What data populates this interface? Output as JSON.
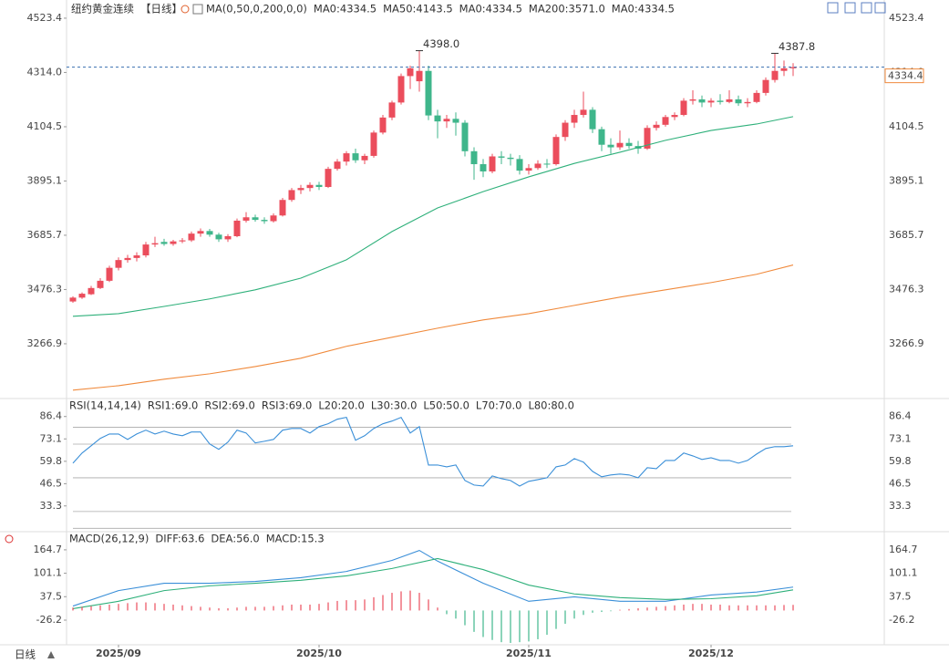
{
  "chart_data": [
    {
      "type": "candlestick",
      "title": "纽约黄金连续",
      "period": "【日线】",
      "indicator": "MA(0,50,0,200,0,0)",
      "period_button": "日线",
      "up_color": "#eb4d5c",
      "down_color": "#3fb68b",
      "ohlc": [
        [
          3430,
          3450,
          3425,
          3445
        ],
        [
          3445,
          3465,
          3440,
          3460
        ],
        [
          3458,
          3490,
          3455,
          3482
        ],
        [
          3482,
          3520,
          3478,
          3510
        ],
        [
          3510,
          3568,
          3505,
          3560
        ],
        [
          3560,
          3600,
          3550,
          3590
        ],
        [
          3590,
          3610,
          3580,
          3598
        ],
        [
          3598,
          3620,
          3585,
          3608
        ],
        [
          3608,
          3660,
          3600,
          3650
        ],
        [
          3650,
          3680,
          3640,
          3655
        ],
        [
          3660,
          3672,
          3645,
          3652
        ],
        [
          3652,
          3668,
          3645,
          3662
        ],
        [
          3662,
          3675,
          3655,
          3666
        ],
        [
          3666,
          3700,
          3660,
          3692
        ],
        [
          3692,
          3712,
          3680,
          3702
        ],
        [
          3702,
          3710,
          3680,
          3688
        ],
        [
          3688,
          3695,
          3660,
          3670
        ],
        [
          3670,
          3690,
          3660,
          3682
        ],
        [
          3682,
          3750,
          3678,
          3742
        ],
        [
          3742,
          3775,
          3735,
          3755
        ],
        [
          3755,
          3765,
          3738,
          3745
        ],
        [
          3745,
          3755,
          3730,
          3740
        ],
        [
          3740,
          3770,
          3735,
          3762
        ],
        [
          3762,
          3830,
          3758,
          3822
        ],
        [
          3822,
          3868,
          3815,
          3860
        ],
        [
          3860,
          3880,
          3845,
          3868
        ],
        [
          3868,
          3890,
          3855,
          3880
        ],
        [
          3880,
          3892,
          3860,
          3872
        ],
        [
          3872,
          3950,
          3868,
          3942
        ],
        [
          3942,
          3980,
          3935,
          3970
        ],
        [
          3970,
          4010,
          3955,
          4002
        ],
        [
          4002,
          4020,
          3965,
          3975
        ],
        [
          3975,
          4000,
          3960,
          3992
        ],
        [
          3992,
          4090,
          3985,
          4082
        ],
        [
          4082,
          4150,
          4075,
          4140
        ],
        [
          4140,
          4205,
          4130,
          4198
        ],
        [
          4198,
          4310,
          4190,
          4300
        ],
        [
          4300,
          4340,
          4250,
          4330
        ],
        [
          4280,
          4398,
          4240,
          4320
        ],
        [
          4320,
          4340,
          4130,
          4148
        ],
        [
          4148,
          4170,
          4060,
          4125
        ],
        [
          4125,
          4150,
          4100,
          4135
        ],
        [
          4135,
          4160,
          4070,
          4120
        ],
        [
          4120,
          4130,
          3990,
          4010
        ],
        [
          4010,
          4025,
          3900,
          3960
        ],
        [
          3960,
          3980,
          3910,
          3932
        ],
        [
          3932,
          4000,
          3925,
          3990
        ],
        [
          3990,
          4010,
          3960,
          3985
        ],
        [
          3985,
          4000,
          3955,
          3980
        ],
        [
          3980,
          3995,
          3920,
          3935
        ],
        [
          3935,
          3960,
          3920,
          3945
        ],
        [
          3945,
          3975,
          3938,
          3962
        ],
        [
          3962,
          3980,
          3945,
          3960
        ],
        [
          3960,
          4075,
          3955,
          4065
        ],
        [
          4065,
          4130,
          4050,
          4120
        ],
        [
          4120,
          4170,
          4100,
          4150
        ],
        [
          4150,
          4240,
          4140,
          4170
        ],
        [
          4170,
          4180,
          4080,
          4095
        ],
        [
          4095,
          4105,
          4010,
          4035
        ],
        [
          4035,
          4060,
          4000,
          4025
        ],
        [
          4025,
          4090,
          4015,
          4042
        ],
        [
          4042,
          4060,
          4020,
          4030
        ],
        [
          4030,
          4050,
          4000,
          4020
        ],
        [
          4020,
          4110,
          4015,
          4100
        ],
        [
          4100,
          4125,
          4090,
          4112
        ],
        [
          4112,
          4150,
          4105,
          4142
        ],
        [
          4142,
          4160,
          4130,
          4150
        ],
        [
          4150,
          4215,
          4145,
          4205
        ],
        [
          4205,
          4245,
          4190,
          4210
        ],
        [
          4210,
          4225,
          4180,
          4198
        ],
        [
          4198,
          4215,
          4180,
          4205
        ],
        [
          4205,
          4230,
          4190,
          4200
        ],
        [
          4200,
          4245,
          4195,
          4210
        ],
        [
          4210,
          4225,
          4185,
          4195
        ],
        [
          4195,
          4215,
          4180,
          4200
        ],
        [
          4200,
          4245,
          4195,
          4235
        ],
        [
          4235,
          4295,
          4225,
          4285
        ],
        [
          4285,
          4387.8,
          4275,
          4320
        ],
        [
          4320,
          4360,
          4300,
          4330
        ],
        [
          4330,
          4350,
          4300,
          4334.4
        ]
      ],
      "series": [
        {
          "name": "MA0:4334.5",
          "color": "#4a8fd8"
        },
        {
          "name": "MA50:4143.5",
          "color": "#2eb07a",
          "x": [
            0,
            5,
            10,
            15,
            20,
            25,
            30,
            35,
            40,
            45,
            50,
            55,
            60,
            65,
            70,
            75,
            79
          ],
          "values": [
            3373,
            3383,
            3411,
            3440,
            3475,
            3520,
            3591,
            3700,
            3791,
            3854,
            3911,
            3963,
            4006,
            4052,
            4090,
            4115,
            4143.5
          ]
        },
        {
          "name": "MA0:4334.5",
          "color": "#49a9c9"
        },
        {
          "name": "MA200:3571.0",
          "color": "#f08a3c",
          "x": [
            0,
            5,
            10,
            15,
            20,
            25,
            30,
            35,
            40,
            45,
            50,
            55,
            60,
            65,
            70,
            75,
            79
          ],
          "values": [
            3088,
            3105,
            3130,
            3151,
            3179,
            3211,
            3257,
            3292,
            3327,
            3359,
            3383,
            3415,
            3447,
            3475,
            3503,
            3535,
            3571
          ]
        },
        {
          "name": "MA0:4334.5",
          "color": "#e07ec0"
        }
      ],
      "last_price": 4334.4,
      "annotations": [
        {
          "label": "4398.0",
          "value": 4398,
          "x": 38
        },
        {
          "label": "4387.8",
          "value": 4387.8,
          "x": 77
        }
      ],
      "ylim": [
        3052,
        4576
      ],
      "yticks": [
        4523.4,
        {
          "value": 4314,
          "label": "4314.0"
        },
        4104.5,
        3895.1,
        3685.7,
        3476.3,
        3266.9
      ],
      "xticks": [
        {
          "value": 5,
          "label": "2025/09"
        },
        {
          "value": 27,
          "label": "2025/10"
        },
        {
          "value": 50,
          "label": "2025/11"
        },
        {
          "value": 70,
          "label": "2025/12"
        }
      ]
    },
    {
      "type": "rsi",
      "title": "RSI(14,14,14)",
      "series": [
        {
          "name": "RSI1:69.0",
          "color": "#3a8fd8",
          "values": [
            58.7,
            64.7,
            69,
            73.4,
            76,
            76,
            72.8,
            76,
            78.3,
            76,
            77.7,
            76,
            75,
            77.2,
            77.2,
            70.1,
            66.9,
            71.2,
            78.3,
            76.6,
            70.7,
            71.7,
            72.8,
            78.3,
            79.3,
            79.3,
            76.6,
            80.4,
            82.1,
            84.8,
            85.9,
            72.3,
            75,
            79.3,
            82.1,
            83.7,
            85.9,
            76.6,
            80.4,
            57.6,
            57.6,
            56.5,
            57.6,
            48.4,
            45.7,
            45.1,
            51.1,
            49.5,
            48.4,
            45.1,
            47.9,
            48.9,
            50,
            56.5,
            57.6,
            61.4,
            59.3,
            53.8,
            50.6,
            51.7,
            52.2,
            51.7,
            50,
            56,
            55.4,
            60.3,
            60.3,
            64.7,
            63,
            60.9,
            61.9,
            60.3,
            60.3,
            58.7,
            60.3,
            64.1,
            67.4,
            68.5,
            68.5,
            69
          ]
        },
        {
          "name": "RSI2:69.0",
          "color": "#2eb07a"
        },
        {
          "name": "RSI3:69.0",
          "color": "#49a9c9"
        }
      ],
      "levels": [
        {
          "name": "L20:20.0",
          "value": 20
        },
        {
          "name": "L30:30.0",
          "value": 30
        },
        {
          "name": "L50:50.0",
          "value": 50
        },
        {
          "name": "L70:70.0",
          "value": 70
        },
        {
          "name": "L80:80.0",
          "value": 80
        }
      ],
      "ylim": [
        18,
        96
      ],
      "yticks": [
        86.4,
        73.1,
        59.8,
        46.5,
        33.3
      ]
    },
    {
      "type": "macd",
      "title": "MACD(26,12,9)",
      "up_color": "#eb4d5c",
      "down_color": "#3fb68b",
      "series": [
        {
          "name": "DIFF:63.6",
          "color": "#3a8fd8",
          "x": [
            0,
            5,
            10,
            15,
            20,
            25,
            30,
            35,
            38,
            40,
            45,
            50,
            55,
            60,
            65,
            70,
            75,
            79
          ],
          "values": [
            12,
            54,
            74,
            74,
            79,
            89,
            106,
            136,
            163,
            134,
            74,
            25,
            37,
            25,
            25,
            42,
            50,
            63.6
          ]
        },
        {
          "name": "DEA:56.0",
          "color": "#2eb07a",
          "x": [
            0,
            5,
            10,
            15,
            20,
            25,
            30,
            35,
            40,
            45,
            50,
            55,
            60,
            65,
            70,
            75,
            79
          ],
          "values": [
            5,
            25,
            54,
            67,
            74,
            82,
            94,
            114,
            141,
            111,
            69,
            45,
            35,
            30,
            32,
            40,
            56
          ]
        },
        {
          "name": "MACD:15.3",
          "color": "#3a8fd8",
          "bars": true,
          "values": [
            8,
            10,
            12,
            14,
            16,
            18,
            20,
            22,
            22,
            20,
            18,
            16,
            14,
            12,
            10,
            8,
            6,
            6,
            8,
            10,
            10,
            10,
            12,
            14,
            16,
            16,
            16,
            18,
            22,
            26,
            28,
            28,
            30,
            36,
            42,
            48,
            52,
            54,
            48,
            30,
            8,
            -10,
            -22,
            -40,
            -58,
            -72,
            -80,
            -86,
            -88,
            -86,
            -84,
            -78,
            -66,
            -50,
            -36,
            -22,
            -12,
            -6,
            -4,
            -2,
            2,
            4,
            6,
            8,
            10,
            12,
            14,
            16,
            18,
            18,
            16,
            16,
            14,
            14,
            14,
            14,
            14,
            14,
            15,
            15.3
          ]
        }
      ],
      "ylim": [
        -93,
        209
      ],
      "yticks": [
        164.7,
        101.1,
        37.5,
        -26.2
      ]
    }
  ]
}
